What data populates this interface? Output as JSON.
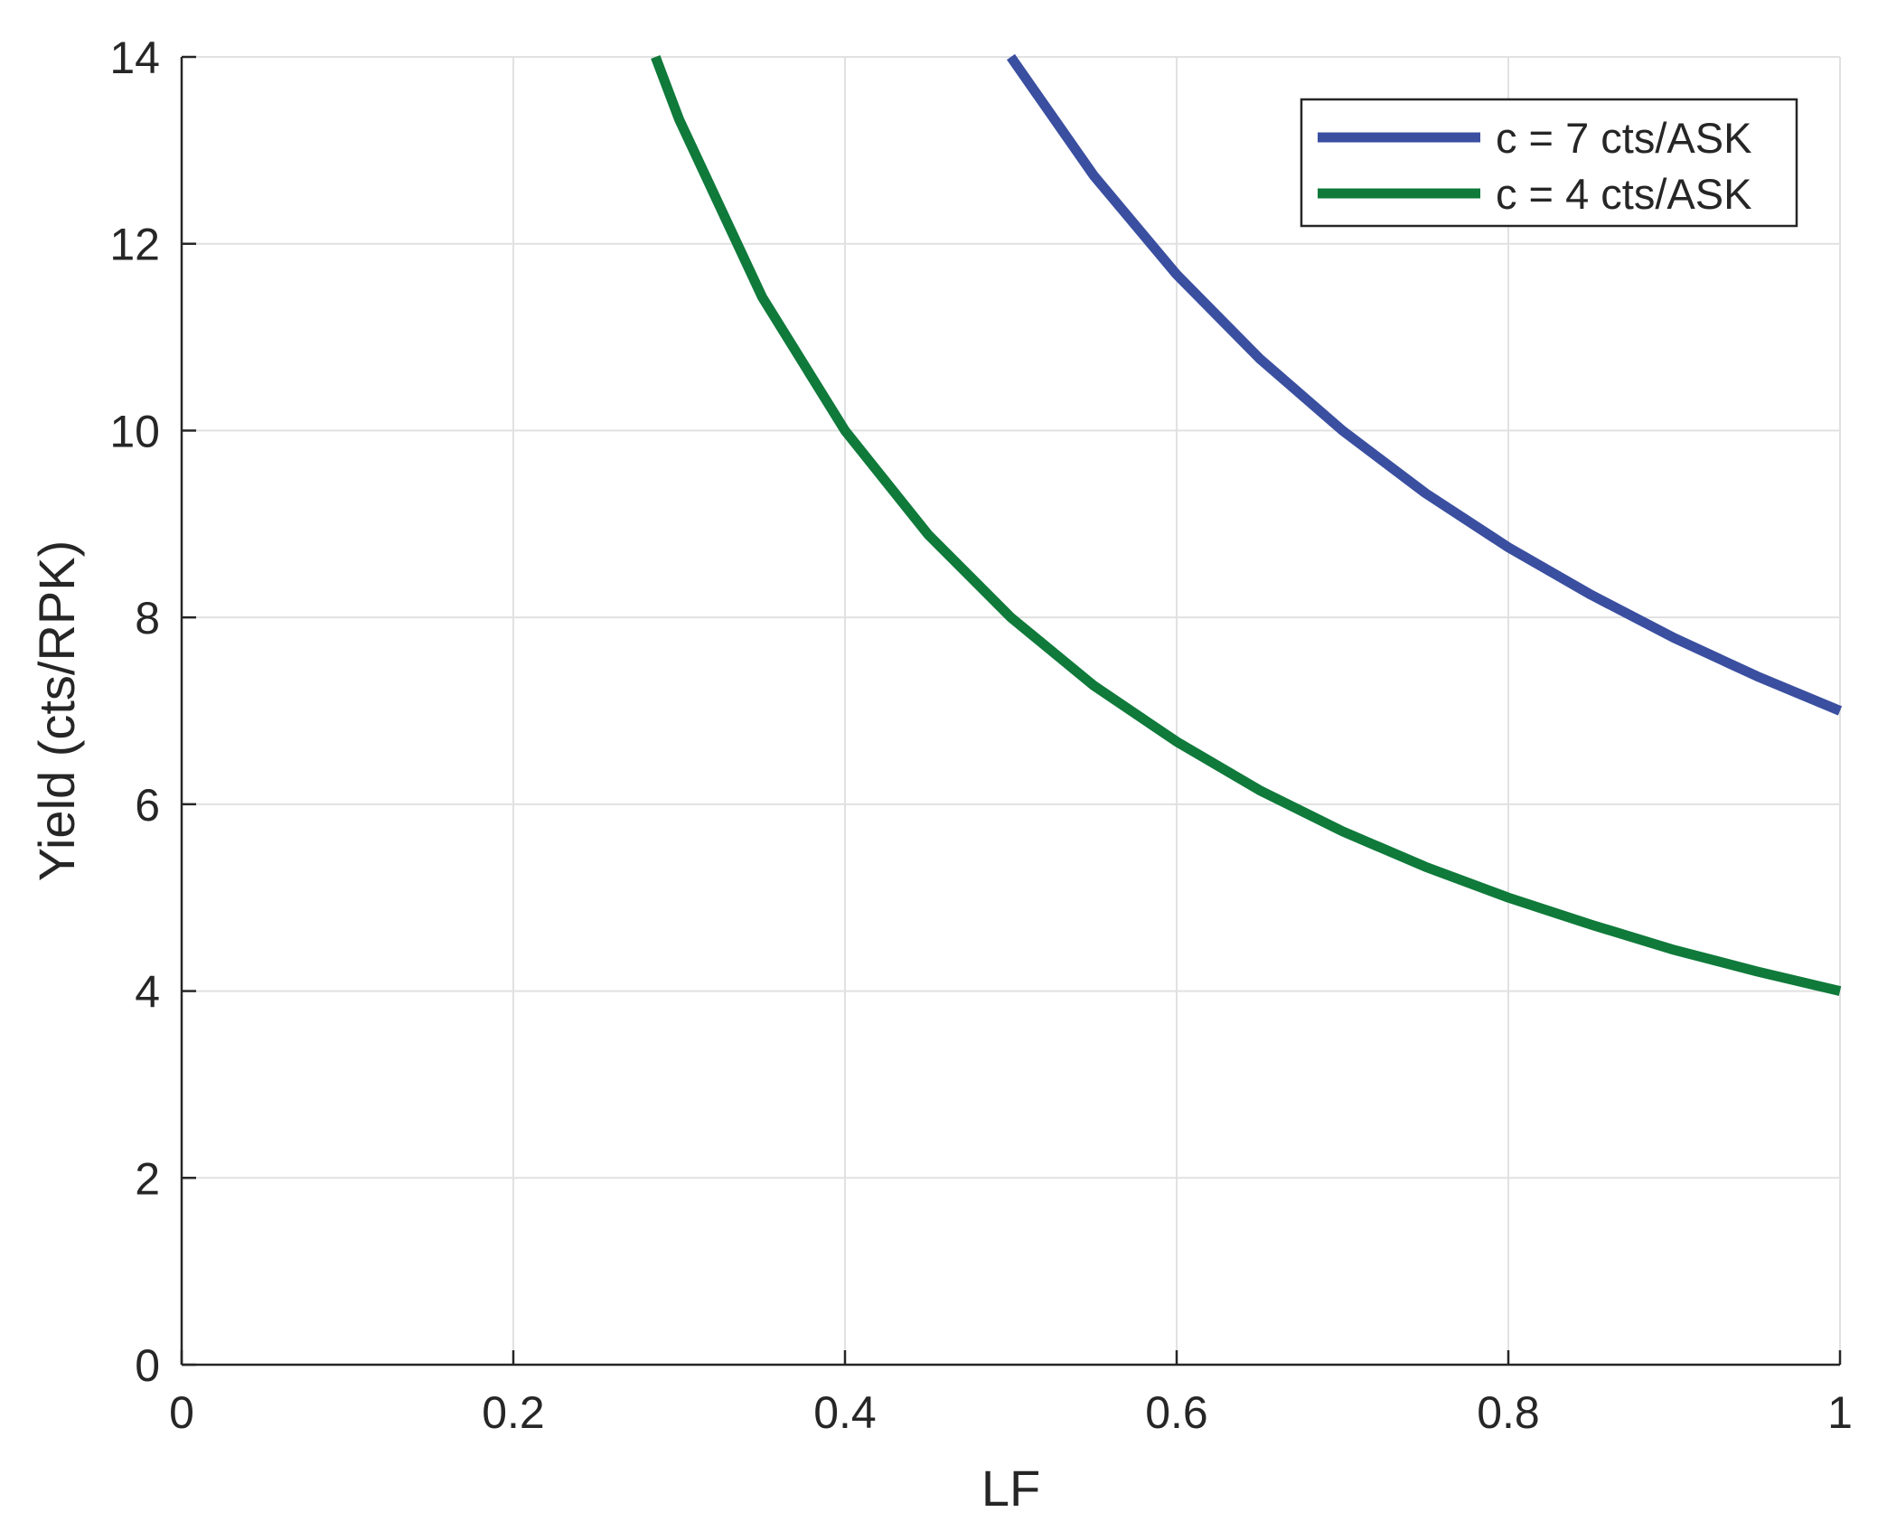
{
  "chart_data": {
    "type": "line",
    "title": "",
    "xlabel": "LF",
    "ylabel": "Yield (cts/RPK)",
    "xlim": [
      0,
      1
    ],
    "ylim": [
      0,
      14
    ],
    "xticks": [
      0,
      0.2,
      0.4,
      0.6,
      0.8,
      1
    ],
    "xtick_labels": [
      "0",
      "0.2",
      "0.4",
      "0.6",
      "0.8",
      "1"
    ],
    "yticks": [
      0,
      2,
      4,
      6,
      8,
      10,
      12,
      14
    ],
    "ytick_labels": [
      "0",
      "2",
      "4",
      "6",
      "8",
      "10",
      "12",
      "14"
    ],
    "grid": true,
    "legend_position": "top-right",
    "series": [
      {
        "name": "c = 7 cts/ASK",
        "color": "#3a4fa0",
        "x": [
          0.5,
          0.55,
          0.6,
          0.65,
          0.7,
          0.75,
          0.8,
          0.85,
          0.9,
          0.95,
          1.0
        ],
        "y": [
          14.0,
          12.73,
          11.67,
          10.77,
          10.0,
          9.33,
          8.75,
          8.24,
          7.78,
          7.37,
          7.0
        ]
      },
      {
        "name": "c = 4 cts/ASK",
        "color": "#0f7a3a",
        "x": [
          0.2857,
          0.3,
          0.35,
          0.4,
          0.45,
          0.5,
          0.55,
          0.6,
          0.65,
          0.7,
          0.75,
          0.8,
          0.85,
          0.9,
          0.95,
          1.0
        ],
        "y": [
          14.0,
          13.33,
          11.43,
          10.0,
          8.89,
          8.0,
          7.27,
          6.67,
          6.15,
          5.71,
          5.33,
          5.0,
          4.71,
          4.44,
          4.21,
          4.0
        ]
      }
    ]
  }
}
